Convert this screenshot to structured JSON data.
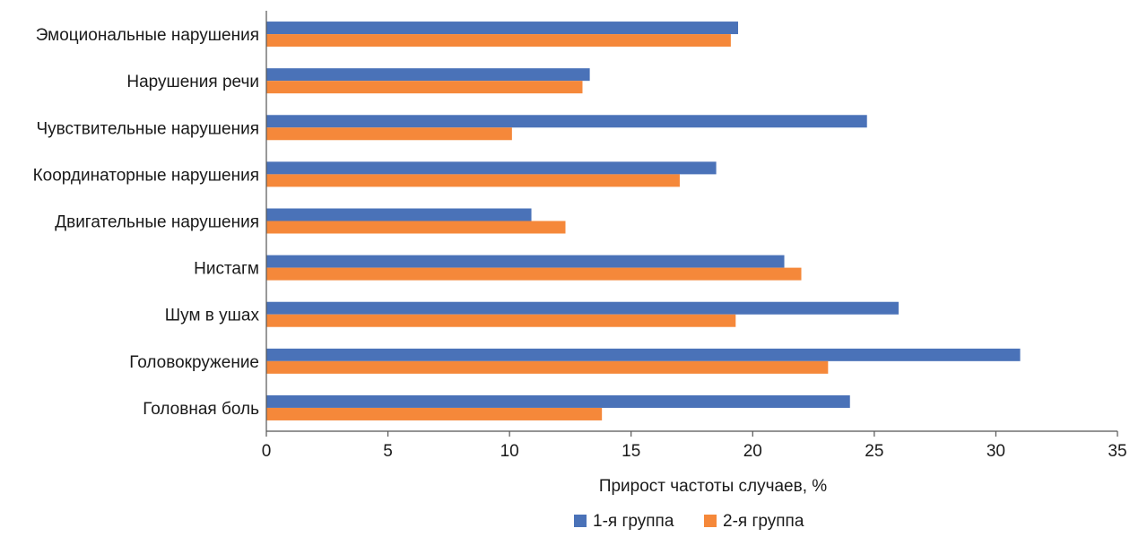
{
  "chart_data": {
    "type": "bar",
    "orientation": "horizontal",
    "categories": [
      "Эмоциональные нарушения",
      "Нарушения речи",
      "Чувствительные нарушения",
      "Координаторные нарушения",
      "Двигательные нарушения",
      "Нистагм",
      "Шум в ушах",
      "Головокружение",
      "Головная боль"
    ],
    "series": [
      {
        "name": "1-я группа",
        "color": "#4a72b8",
        "values": [
          19.4,
          13.3,
          24.7,
          18.5,
          10.9,
          21.3,
          26.0,
          31.0,
          24.0
        ]
      },
      {
        "name": "2-я группа",
        "color": "#f5883a",
        "values": [
          19.1,
          13.0,
          10.1,
          17.0,
          12.3,
          22.0,
          19.3,
          23.1,
          13.8
        ]
      }
    ],
    "xlabel": "Прирост частоты случаев, %",
    "ylabel": "",
    "xlim": [
      0,
      35
    ],
    "xticks": [
      "0",
      "5",
      "10",
      "15",
      "20",
      "25",
      "30",
      "35"
    ],
    "grid": false,
    "legend_position": "bottom-center"
  }
}
